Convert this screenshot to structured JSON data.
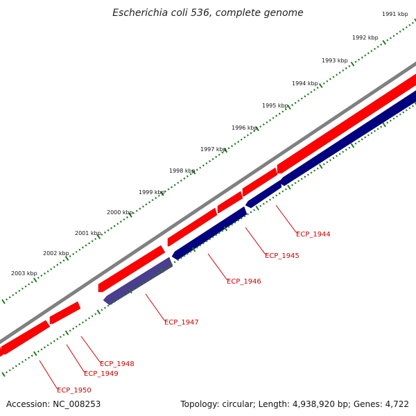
{
  "title": "Escherichia coli 536, complete genome",
  "footer": {
    "accession": "Accession: NC_008253",
    "topology": "Topology: circular; Length: 4,938,920 bp; Genes: 4,722"
  },
  "colors": {
    "backbone": "#808080",
    "forward_gene": "#ff0000",
    "reverse_gene": "#000080",
    "reverse_gene_alt": "#4b3d8f",
    "tick": "#1f7a1f",
    "label": "#cc0000"
  },
  "scale": {
    "unit": "kbp",
    "labels": [
      "1991 kbp",
      "1992 kbp",
      "1993 kbp",
      "1994 kbp",
      "1995 kbp",
      "1996 kbp",
      "1997 kbp",
      "1998 kbp",
      "1999 kbp",
      "2000 kbp",
      "2001 kbp",
      "2002 kbp",
      "2003 kbp"
    ]
  },
  "genes": [
    {
      "name": "ECP_1944",
      "strand": "reverse"
    },
    {
      "name": "ECP_1945",
      "strand": "reverse"
    },
    {
      "name": "ECP_1946",
      "strand": "reverse"
    },
    {
      "name": "ECP_1947",
      "strand": "reverse"
    },
    {
      "name": "ECP_1948",
      "strand": "forward"
    },
    {
      "name": "ECP_1949",
      "strand": "forward"
    },
    {
      "name": "ECP_1950",
      "strand": "forward"
    }
  ]
}
